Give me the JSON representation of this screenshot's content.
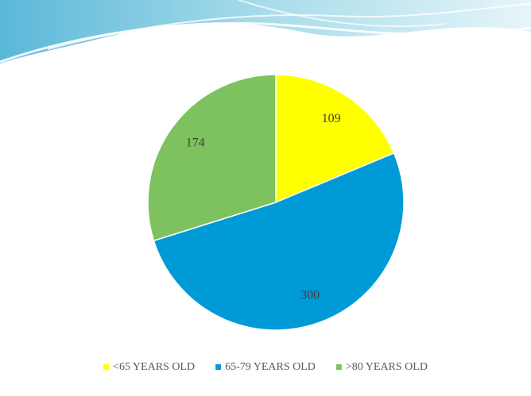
{
  "chart_data": {
    "type": "pie",
    "categories": [
      "<65 YEARS OLD",
      "65-79 YEARS OLD",
      ">80 YEARS OLD"
    ],
    "values": [
      109,
      300,
      174
    ],
    "colors": [
      "#ffff00",
      "#009ad6",
      "#7dc25e"
    ],
    "legend": "bottom"
  }
}
